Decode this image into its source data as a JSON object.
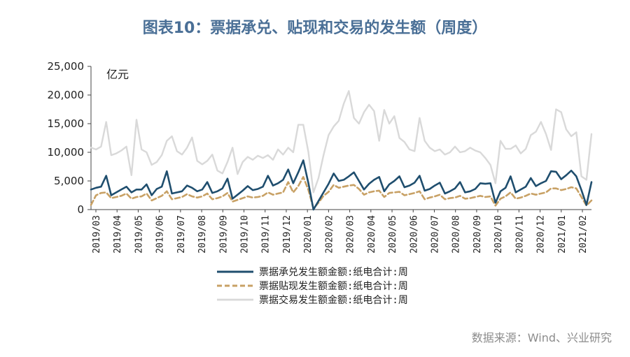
{
  "title": "图表10：票据承兑、贴现和交易的发生额（周度）",
  "source": "数据来源：Wind、兴业研究",
  "chart_data": {
    "type": "line",
    "unit_label": "亿元",
    "ylim": [
      0,
      25000
    ],
    "y_ticks": [
      "0",
      "5,000",
      "10,000",
      "15,000",
      "20,000",
      "25,000"
    ],
    "y_tick_values": [
      0,
      5000,
      10000,
      15000,
      20000,
      25000
    ],
    "x_ticks": [
      "2019/03",
      "2019/04",
      "2019/05",
      "2019/06",
      "2019/07",
      "2019/08",
      "2019/09",
      "2019/10",
      "2019/11",
      "2019/12",
      "2020/01",
      "2020/02",
      "2020/03",
      "2020/04",
      "2020/05",
      "2020/06",
      "2020/07",
      "2020/08",
      "2020/09",
      "2020/10",
      "2020/11",
      "2020/12",
      "2021/01",
      "2021/02"
    ],
    "colors": {
      "acceptance": "#1f4e6e",
      "discount": "#c8a165",
      "trade": "#d9d9d9"
    },
    "series": [
      {
        "name": "票据承兑发生额金额:纸电合计:周",
        "key": "acceptance",
        "values": [
          3500,
          3800,
          4000,
          5900,
          2500,
          3000,
          3500,
          4000,
          3000,
          3500,
          3500,
          4400,
          2500,
          3600,
          4000,
          6700,
          2800,
          3000,
          3200,
          4200,
          3800,
          3200,
          3500,
          4800,
          2900,
          3200,
          3700,
          5400,
          1900,
          2600,
          3300,
          4100,
          3400,
          3600,
          4000,
          5900,
          4200,
          4600,
          5200,
          7000,
          4600,
          6500,
          8600,
          4600,
          0,
          1500,
          3000,
          4500,
          6300,
          5000,
          5200,
          5800,
          6500,
          5000,
          3500,
          4500,
          5200,
          5700,
          3200,
          4400,
          5000,
          5800,
          3900,
          4200,
          4700,
          5900,
          3300,
          3600,
          4200,
          4700,
          2800,
          3200,
          3700,
          4800,
          3000,
          3200,
          3600,
          4600,
          4500,
          4600,
          1200,
          3200,
          3800,
          5800,
          3000,
          3500,
          4000,
          5500,
          4100,
          4600,
          5000,
          6700,
          6600,
          5300,
          6000,
          6800,
          5800,
          3400,
          800,
          4800
        ]
      },
      {
        "name": "票据贴现发生额金额:纸电合计:周",
        "key": "discount",
        "values": [
          800,
          2500,
          2900,
          3000,
          2000,
          2200,
          2400,
          2800,
          1900,
          2200,
          2300,
          2800,
          1600,
          2000,
          2400,
          3200,
          1800,
          2000,
          2200,
          2700,
          2300,
          2100,
          2300,
          2800,
          1800,
          2000,
          2300,
          2900,
          1400,
          1700,
          2000,
          2300,
          2100,
          2200,
          2400,
          3000,
          2600,
          2800,
          3000,
          4800,
          3000,
          4100,
          5700,
          3400,
          200,
          1200,
          2400,
          3100,
          4300,
          3800,
          4000,
          4200,
          4300,
          3600,
          2600,
          3000,
          3200,
          3300,
          2200,
          2900,
          3000,
          3100,
          2500,
          2700,
          2900,
          3200,
          1800,
          2100,
          2300,
          2600,
          1800,
          2000,
          2100,
          2400,
          1900,
          2000,
          2200,
          2400,
          2200,
          2300,
          700,
          1900,
          2300,
          3000,
          1900,
          2100,
          2400,
          2800,
          2600,
          2800,
          3000,
          3700,
          3700,
          3400,
          3600,
          3900,
          3700,
          2200,
          700,
          1600
        ]
      },
      {
        "name": "票据交易发生额金额:纸电合计:周",
        "key": "trade",
        "values": [
          10800,
          10500,
          11000,
          15300,
          9500,
          9800,
          10300,
          11000,
          6000,
          15700,
          10500,
          10000,
          7800,
          8300,
          9500,
          12000,
          12800,
          10200,
          9600,
          10800,
          12600,
          8500,
          7900,
          8500,
          9600,
          6800,
          6300,
          8300,
          10800,
          6200,
          8300,
          9200,
          8700,
          9400,
          9000,
          9500,
          8700,
          10500,
          9600,
          10800,
          10000,
          14800,
          14800,
          10000,
          3000,
          5500,
          9500,
          13000,
          14500,
          15500,
          18500,
          20700,
          16000,
          15000,
          17000,
          18300,
          17200,
          12000,
          17400,
          15000,
          16300,
          12500,
          11800,
          10500,
          10200,
          16000,
          12000,
          10800,
          10200,
          10500,
          9600,
          10000,
          11000,
          10000,
          10200,
          10800,
          10300,
          10000,
          9000,
          7800,
          4600,
          12000,
          10600,
          10600,
          11200,
          9800,
          10600,
          13000,
          13600,
          15300,
          13200,
          10400,
          17500,
          17000,
          14000,
          12800,
          13500,
          5800,
          5200,
          13200
        ]
      }
    ]
  }
}
